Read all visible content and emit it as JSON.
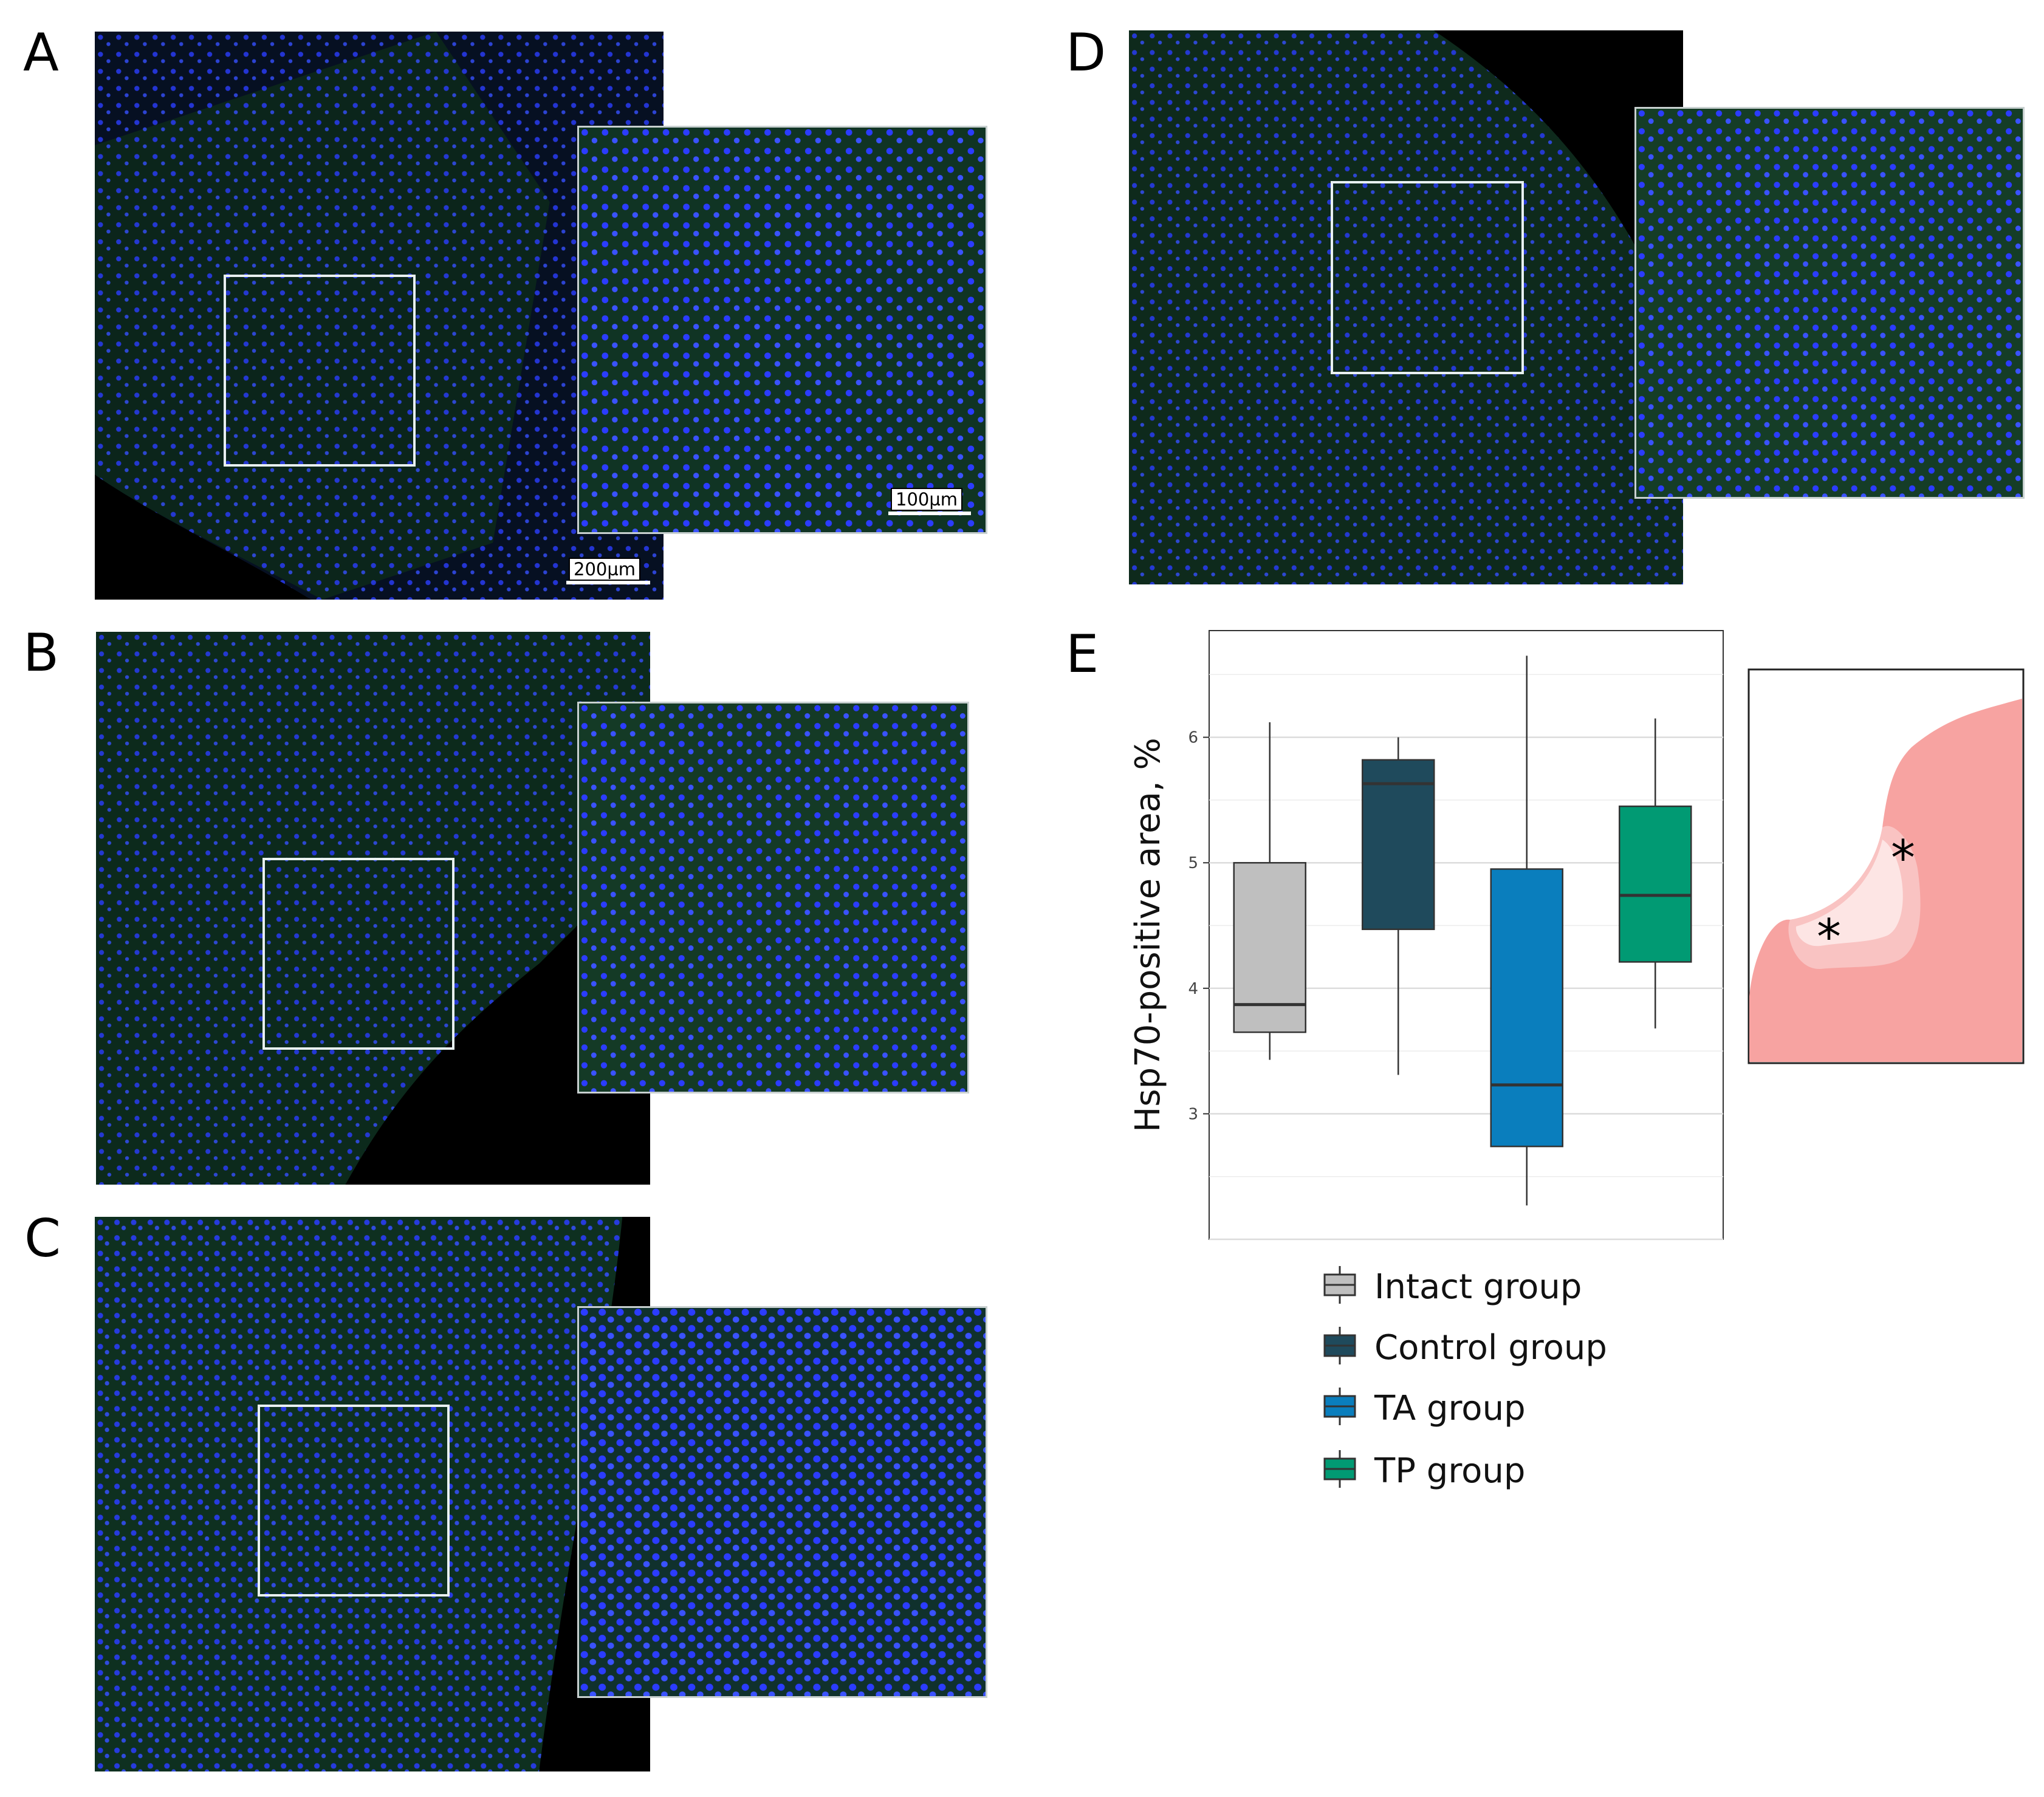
{
  "panels": {
    "A": {
      "letter": "A",
      "scale_main": "200µm",
      "scale_inset": "100µm"
    },
    "B": {
      "letter": "B"
    },
    "C": {
      "letter": "C"
    },
    "D": {
      "letter": "D"
    },
    "E": {
      "letter": "E"
    }
  },
  "colors": {
    "tissue_nuclei": "#1a3cff",
    "tissue_signal": "#2fa84a",
    "background": "#000000",
    "roi_border": "#e8f0f0",
    "schematic_fill": "#f7a3a1",
    "schematic_light1": "#f9c3c2",
    "schematic_light2": "#fde5e4"
  },
  "chart_data": {
    "type": "box",
    "title": "",
    "xlabel": "",
    "ylabel": "Hsp70-positive area, %",
    "ylim": [
      2.0,
      6.85
    ],
    "yticks": [
      3,
      4,
      5,
      6
    ],
    "grid": true,
    "legend_position": "bottom",
    "series": [
      {
        "name": "Intact group",
        "color": "#bfbfbf",
        "whisker_low": 3.43,
        "q1": 3.65,
        "median": 3.87,
        "q3": 5.0,
        "whisker_high": 6.12
      },
      {
        "name": "Control group",
        "color": "#1f4a5c",
        "whisker_low": 3.31,
        "q1": 4.47,
        "median": 5.63,
        "q3": 5.82,
        "whisker_high": 6.0
      },
      {
        "name": "TA group",
        "color": "#0a7ebd",
        "whisker_low": 2.27,
        "q1": 2.74,
        "median": 3.23,
        "q3": 4.95,
        "whisker_high": 6.65
      },
      {
        "name": "TP group",
        "color": "#019a73",
        "whisker_low": 3.68,
        "q1": 4.21,
        "median": 4.74,
        "q3": 5.45,
        "whisker_high": 6.15
      }
    ]
  },
  "schematic": {
    "marker1": "*",
    "marker2": "*"
  }
}
